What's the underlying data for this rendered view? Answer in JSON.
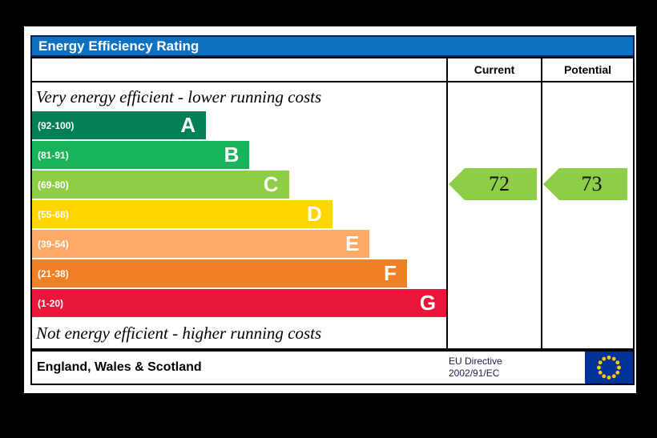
{
  "title_bar": {
    "label": "Energy Efficiency Rating",
    "bg": "#0e70c1",
    "border": "#05235a"
  },
  "header": {
    "current": "Current",
    "potential": "Potential"
  },
  "notes": {
    "top": "Very energy efficient - lower running costs",
    "bottom": "Not energy efficient - higher running costs"
  },
  "bands": [
    {
      "letter": "A",
      "range": "(92-100)",
      "color": "#008054",
      "width_pct": 42
    },
    {
      "letter": "B",
      "range": "(81-91)",
      "color": "#19b459",
      "width_pct": 52.5
    },
    {
      "letter": "C",
      "range": "(69-80)",
      "color": "#8dce46",
      "width_pct": 62
    },
    {
      "letter": "D",
      "range": "(55-68)",
      "color": "#ffd500",
      "width_pct": 72.5
    },
    {
      "letter": "E",
      "range": "(39-54)",
      "color": "#fcaa65",
      "width_pct": 81.5
    },
    {
      "letter": "F",
      "range": "(21-38)",
      "color": "#ef8023",
      "width_pct": 90.5
    },
    {
      "letter": "G",
      "range": "(1-20)",
      "color": "#e9153b",
      "width_pct": 100
    }
  ],
  "ratings": {
    "current": {
      "value": 72,
      "band": "C",
      "color": "#8dce46"
    },
    "potential": {
      "value": 73,
      "band": "C",
      "color": "#8dce46"
    }
  },
  "footer": {
    "region": "England, Wales & Scotland",
    "directive_line1": "EU Directive",
    "directive_line2": "2002/91/EC"
  },
  "eu_flag": {
    "bg": "#003399",
    "star_color": "#ffcc00"
  },
  "chart_data": {
    "type": "bar",
    "title": "Energy Efficiency Rating",
    "categories": [
      "A",
      "B",
      "C",
      "D",
      "E",
      "F",
      "G"
    ],
    "tick_labels": [
      "(92-100)",
      "(81-91)",
      "(69-80)",
      "(55-68)",
      "(39-54)",
      "(21-38)",
      "(1-20)"
    ],
    "band_ranges": [
      [
        92,
        100
      ],
      [
        81,
        91
      ],
      [
        69,
        80
      ],
      [
        55,
        68
      ],
      [
        39,
        54
      ],
      [
        21,
        38
      ],
      [
        1,
        20
      ]
    ],
    "bar_colors": [
      "#008054",
      "#19b459",
      "#8dce46",
      "#ffd500",
      "#fcaa65",
      "#ef8023",
      "#e9153b"
    ],
    "bar_lengths_pct": [
      42,
      52.5,
      62,
      72.5,
      81.5,
      90.5,
      100
    ],
    "series": [
      {
        "name": "Current",
        "value": 72,
        "band": "C"
      },
      {
        "name": "Potential",
        "value": 73,
        "band": "C"
      }
    ],
    "value_range": [
      1,
      100
    ],
    "top_annotation": "Very energy efficient - lower running costs",
    "bottom_annotation": "Not energy efficient - higher running costs",
    "region": "England, Wales & Scotland",
    "directive": "EU Directive 2002/91/EC",
    "legend_position": "none",
    "grid": false
  }
}
